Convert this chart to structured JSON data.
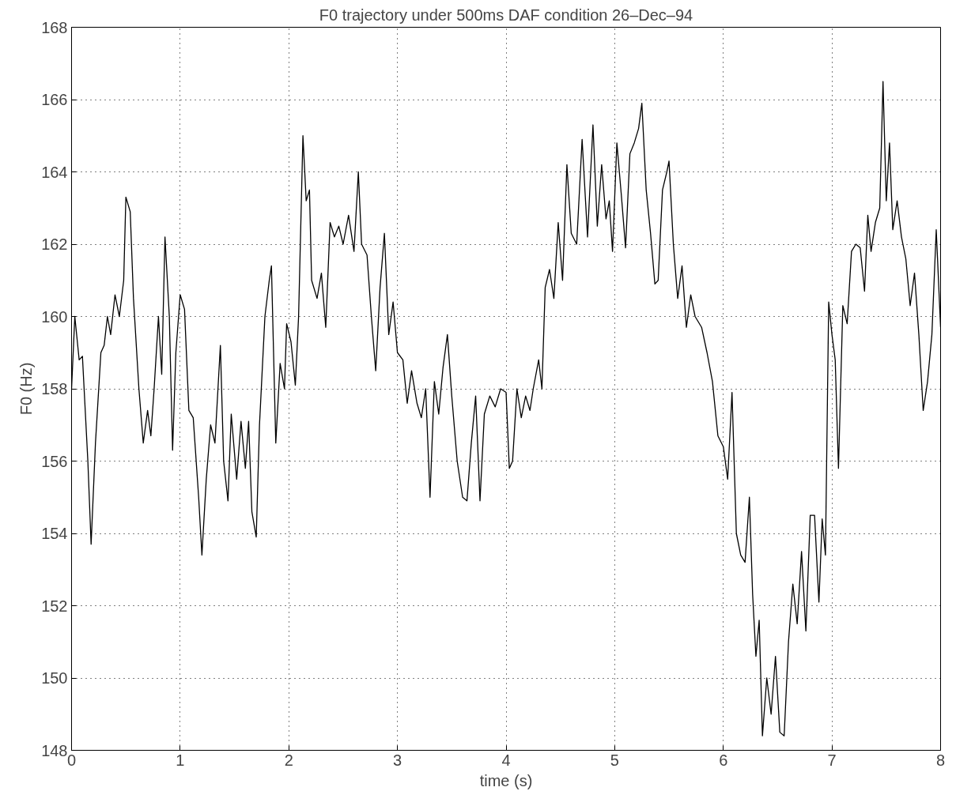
{
  "chart_data": {
    "type": "line",
    "title": "F0 trajectory under 500ms DAF condition 26–Dec–94",
    "xlabel": "time (s)",
    "ylabel": "F0 (Hz)",
    "x": [
      0,
      0.03,
      0.07,
      0.1,
      0.15,
      0.18,
      0.22,
      0.27,
      0.3,
      0.33,
      0.36,
      0.4,
      0.44,
      0.48,
      0.5,
      0.54,
      0.57,
      0.62,
      0.66,
      0.7,
      0.73,
      0.76,
      0.8,
      0.83,
      0.86,
      0.9,
      0.93,
      0.96,
      1.0,
      1.04,
      1.08,
      1.12,
      1.17,
      1.2,
      1.24,
      1.28,
      1.32,
      1.37,
      1.4,
      1.44,
      1.47,
      1.52,
      1.56,
      1.6,
      1.63,
      1.66,
      1.7,
      1.73,
      1.78,
      1.82,
      1.84,
      1.88,
      1.92,
      1.96,
      1.98,
      2.02,
      2.06,
      2.09,
      2.13,
      2.16,
      2.19,
      2.21,
      2.26,
      2.3,
      2.34,
      2.38,
      2.42,
      2.46,
      2.5,
      2.55,
      2.6,
      2.64,
      2.67,
      2.72,
      2.76,
      2.8,
      2.84,
      2.88,
      2.92,
      2.96,
      3.0,
      3.05,
      3.09,
      3.13,
      3.18,
      3.22,
      3.26,
      3.3,
      3.34,
      3.38,
      3.42,
      3.46,
      3.5,
      3.55,
      3.6,
      3.64,
      3.68,
      3.72,
      3.76,
      3.8,
      3.85,
      3.9,
      3.95,
      4.0,
      4.03,
      4.06,
      4.1,
      4.14,
      4.18,
      4.22,
      4.25,
      4.3,
      4.33,
      4.36,
      4.4,
      4.44,
      4.48,
      4.52,
      4.56,
      4.6,
      4.65,
      4.7,
      4.75,
      4.8,
      4.84,
      4.88,
      4.92,
      4.95,
      4.98,
      5.02,
      5.06,
      5.1,
      5.14,
      5.18,
      5.22,
      5.25,
      5.29,
      5.33,
      5.37,
      5.4,
      5.44,
      5.48,
      5.5,
      5.54,
      5.58,
      5.62,
      5.66,
      5.7,
      5.74,
      5.8,
      5.85,
      5.9,
      5.95,
      6.0,
      6.04,
      6.08,
      6.12,
      6.16,
      6.2,
      6.24,
      6.27,
      6.3,
      6.33,
      6.36,
      6.4,
      6.44,
      6.48,
      6.52,
      6.56,
      6.6,
      6.64,
      6.68,
      6.72,
      6.76,
      6.8,
      6.84,
      6.88,
      6.91,
      6.94,
      6.97,
      7.0,
      7.03,
      7.06,
      7.1,
      7.14,
      7.18,
      7.22,
      7.26,
      7.3,
      7.33,
      7.36,
      7.4,
      7.44,
      7.47,
      7.5,
      7.53,
      7.56,
      7.6,
      7.64,
      7.68,
      7.72,
      7.76,
      7.8,
      7.84,
      7.88,
      7.92,
      7.96,
      8.0
    ],
    "series": [
      {
        "color": "#000000",
        "values": [
          158,
          160,
          158.8,
          158.9,
          156,
          153.7,
          156.5,
          159,
          159.2,
          160,
          159.5,
          160.6,
          160,
          161,
          163.3,
          162.9,
          160.5,
          158,
          156.5,
          157.4,
          156.7,
          158,
          160,
          158.4,
          162.2,
          160,
          156.3,
          159,
          160.6,
          160.2,
          157.4,
          157.2,
          155,
          153.4,
          155.5,
          157,
          156.5,
          159.2,
          156,
          154.9,
          157.3,
          155.5,
          157.1,
          155.8,
          157.1,
          154.6,
          153.9,
          157,
          160,
          161,
          161.4,
          156.5,
          158.7,
          158,
          159.8,
          159.3,
          158.1,
          160,
          165,
          163.2,
          163.5,
          161,
          160.5,
          161.2,
          159.7,
          162.6,
          162.2,
          162.5,
          162,
          162.8,
          161.8,
          164,
          162,
          161.7,
          160,
          158.5,
          160.8,
          162.3,
          159.5,
          160.4,
          159,
          158.8,
          157.6,
          158.5,
          157.6,
          157.2,
          158,
          155,
          158.2,
          157.3,
          158.6,
          159.5,
          157.8,
          156,
          155,
          154.9,
          156.5,
          157.8,
          154.9,
          157.3,
          157.8,
          157.5,
          158,
          157.9,
          155.8,
          156,
          158,
          157.2,
          157.8,
          157.4,
          158,
          158.8,
          158,
          160.8,
          161.3,
          160.5,
          162.6,
          161,
          164.2,
          162.3,
          162,
          164.9,
          162.2,
          165.3,
          162.5,
          164.2,
          162.7,
          163.2,
          161.8,
          164.8,
          163.4,
          161.9,
          164.5,
          164.8,
          165.2,
          165.9,
          163.5,
          162.3,
          160.9,
          161,
          163.5,
          164,
          164.3,
          162,
          160.5,
          161.4,
          159.7,
          160.6,
          160,
          159.7,
          159,
          158.2,
          156.7,
          156.4,
          155.5,
          157.9,
          154,
          153.4,
          153.2,
          155,
          152.3,
          150.6,
          151.6,
          148.4,
          150,
          149,
          150.6,
          148.5,
          148.4,
          151,
          152.6,
          151.5,
          153.5,
          151.3,
          154.5,
          154.5,
          152.1,
          154.4,
          153.4,
          160.4,
          159.5,
          158.8,
          155.8,
          160.3,
          159.8,
          161.8,
          162,
          161.9,
          160.7,
          162.8,
          161.8,
          162.6,
          163,
          166.5,
          163.2,
          164.8,
          162.4,
          163.2,
          162.2,
          161.6,
          160.3,
          161.2,
          159.5,
          157.4,
          158.2,
          159.5,
          162.4,
          159.7
        ]
      }
    ],
    "xlim": [
      0,
      8
    ],
    "xticks": [
      0,
      1,
      2,
      3,
      4,
      5,
      6,
      7,
      8
    ],
    "ylim": [
      148,
      168
    ],
    "yticks": [
      148,
      150,
      152,
      154,
      156,
      158,
      160,
      162,
      164,
      166,
      168
    ],
    "grid": true,
    "line_style": "solid",
    "marker": "none"
  }
}
